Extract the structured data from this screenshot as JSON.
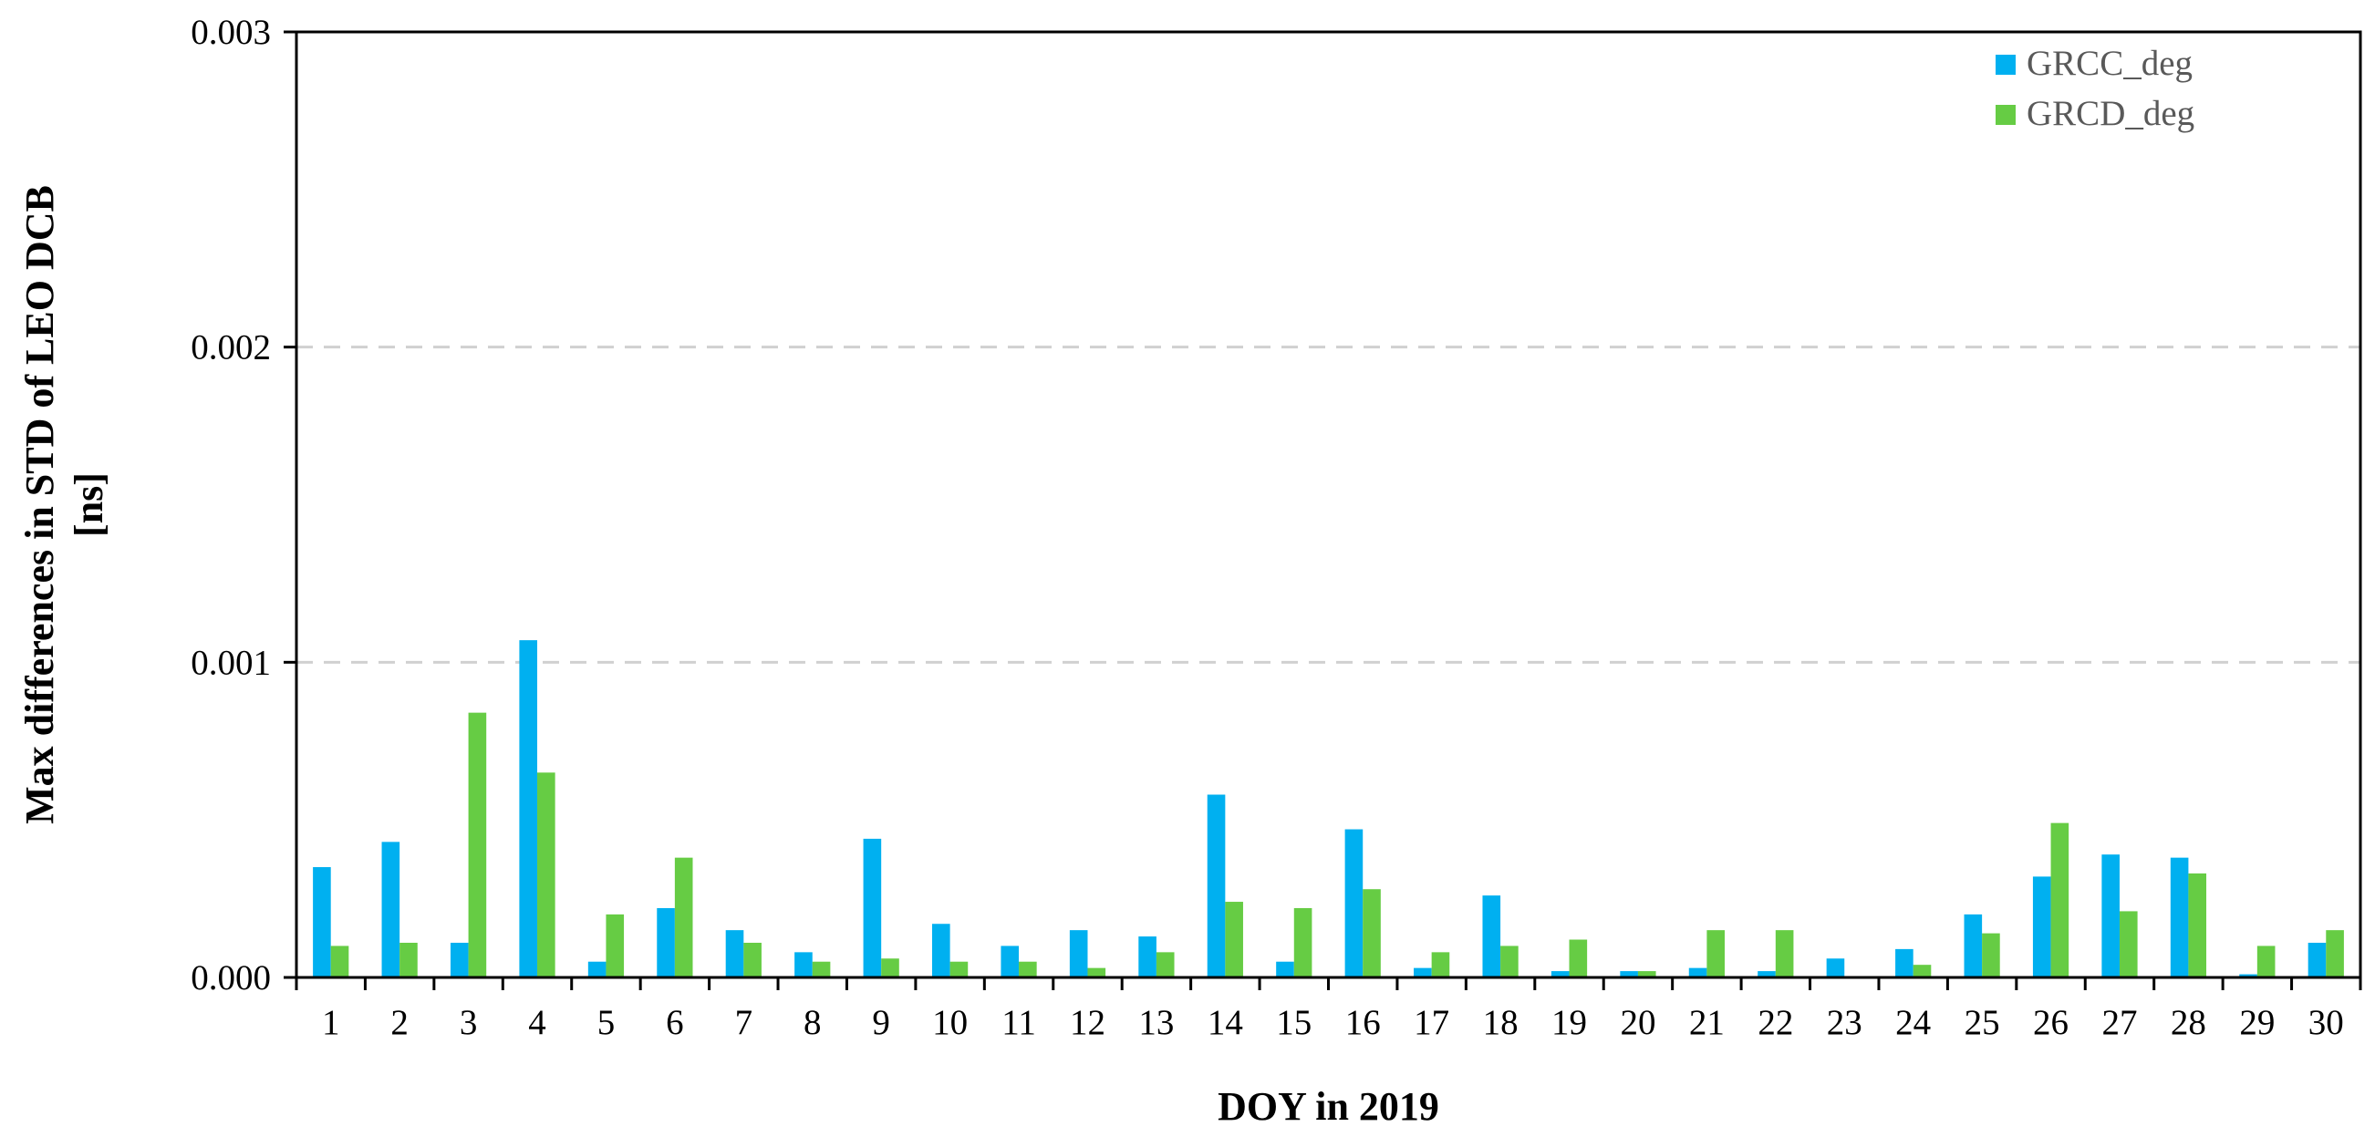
{
  "chart_data": {
    "type": "bar",
    "xlabel": "DOY in 2019",
    "ylabel_lines": [
      "Max differences in STD of LEO DCB",
      "[ns]"
    ],
    "ylim": [
      0,
      0.003
    ],
    "yticks": [
      "0.000",
      "0.001",
      "0.002",
      "0.003"
    ],
    "ytick_values": [
      0,
      0.001,
      0.002,
      0.003
    ],
    "grid": "horizontal dashed",
    "legend_position": "top-right",
    "categories": [
      "1",
      "2",
      "3",
      "4",
      "5",
      "6",
      "7",
      "8",
      "9",
      "10",
      "11",
      "12",
      "13",
      "14",
      "15",
      "16",
      "17",
      "18",
      "19",
      "20",
      "21",
      "22",
      "23",
      "24",
      "25",
      "26",
      "27",
      "28",
      "29",
      "30"
    ],
    "series": [
      {
        "name": "GRCC_deg",
        "color": "#00B0F0",
        "values": [
          0.00035,
          0.00043,
          0.00011,
          0.00107,
          5e-05,
          0.00022,
          0.00015,
          8e-05,
          0.00044,
          0.00017,
          0.0001,
          0.00015,
          0.00013,
          0.00058,
          5e-05,
          0.00047,
          3e-05,
          0.00026,
          2e-05,
          2e-05,
          3e-05,
          2e-05,
          6e-05,
          9e-05,
          0.0002,
          0.00032,
          0.00039,
          0.00038,
          1e-05,
          0.00011
        ]
      },
      {
        "name": "GRCD_deg",
        "color": "#66CC44",
        "values": [
          0.0001,
          0.00011,
          0.00084,
          0.00065,
          0.0002,
          0.00038,
          0.00011,
          5e-05,
          6e-05,
          5e-05,
          5e-05,
          3e-05,
          8e-05,
          0.00024,
          0.00022,
          0.00028,
          8e-05,
          0.0001,
          0.00012,
          2e-05,
          0.00015,
          0.00015,
          0.0,
          4e-05,
          0.00014,
          0.00049,
          0.00021,
          0.00033,
          0.0001,
          0.00015
        ]
      }
    ]
  }
}
